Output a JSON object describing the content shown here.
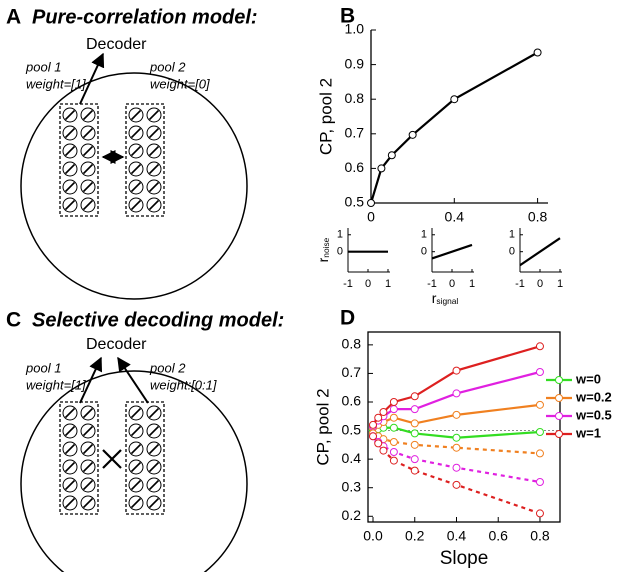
{
  "panel_A": {
    "label": "A",
    "title": "Pure-correlation model:",
    "decoder": "Decoder",
    "pool1": {
      "name": "pool 1",
      "weight": "weight=[1]"
    },
    "pool2": {
      "name": "pool 2",
      "weight": "weight=[0]"
    }
  },
  "panel_C": {
    "label": "C",
    "title": "Selective decoding model:",
    "decoder": "Decoder",
    "pool1": {
      "name": "pool 1",
      "weight": "weight=[1]"
    },
    "pool2": {
      "name": "pool 2",
      "weight": "weight:[0:1]"
    }
  },
  "chart_data": [
    {
      "type": "line",
      "panel_label": "B",
      "ylabel": "CP, pool 2",
      "color": "#000000",
      "x": [
        0,
        0.05,
        0.1,
        0.2,
        0.4,
        0.8
      ],
      "values": [
        0.5,
        0.6,
        0.638,
        0.697,
        0.8,
        0.935
      ],
      "xlim": [
        0,
        0.85
      ],
      "xticks": [
        0,
        0.4,
        0.8
      ],
      "ylim": [
        0.5,
        1.0
      ],
      "yticks": [
        0.5,
        0.6,
        0.7,
        0.8,
        0.9,
        {
          "value": 1.0,
          "label": "1.0"
        }
      ]
    },
    {
      "type": "line",
      "ylabel": "r",
      "ylabel_subscript": "noise",
      "color": "#000000",
      "x": [
        -1,
        1
      ],
      "values": [
        0,
        0
      ],
      "xlim": [
        -1,
        1.1
      ],
      "xticks": [
        -1,
        0,
        1
      ],
      "ylim": [
        -1.2,
        1.4
      ],
      "yticks": [
        0,
        1
      ]
    },
    {
      "type": "line",
      "xlabel": "r",
      "xlabel_subscript": "signal",
      "color": "#000000",
      "x": [
        -1,
        1
      ],
      "values": [
        -0.4,
        0.4
      ],
      "xlim": [
        -1,
        1.1
      ],
      "xticks": [
        -1,
        0,
        1
      ],
      "ylim": [
        -1.2,
        1.4
      ],
      "yticks": [
        0,
        1
      ]
    },
    {
      "type": "line",
      "color": "#000000",
      "x": [
        -1,
        1
      ],
      "values": [
        -0.8,
        0.8
      ],
      "xlim": [
        -1,
        1.1
      ],
      "xticks": [
        -1,
        0,
        1
      ],
      "ylim": [
        -1.2,
        1.4
      ],
      "yticks": [
        0,
        1
      ]
    },
    {
      "type": "line",
      "panel_label": "D",
      "ylabel": "CP, pool 2",
      "xlabel": "Slope",
      "legend": "right",
      "reference_line": 0.5,
      "x": [
        0,
        0.025,
        0.05,
        0.1,
        0.2,
        0.4,
        0.8
      ],
      "xlim": [
        -0.024,
        0.896
      ],
      "xticks": [
        {
          "value": 0,
          "label": "0.0"
        },
        0.2,
        0.4,
        0.6,
        0.8
      ],
      "ylim": [
        0.18,
        0.845
      ],
      "yticks": [
        0.2,
        0.3,
        0.4,
        0.5,
        0.6,
        0.7,
        0.8
      ],
      "series": [
        {
          "name": "w=0",
          "color": "#33dd22",
          "linestyle": "solid",
          "values": [
            0.5,
            0.505,
            0.51,
            0.51,
            0.49,
            0.475,
            0.495
          ]
        },
        {
          "name": "w=0.2",
          "color": "#f08020",
          "linestyle": "solid",
          "values": [
            0.51,
            0.52,
            0.53,
            0.545,
            0.525,
            0.555,
            0.59
          ]
        },
        {
          "name": "w=0.5",
          "color": "#e020e0",
          "linestyle": "solid",
          "values": [
            0.515,
            0.535,
            0.55,
            0.575,
            0.575,
            0.63,
            0.705
          ]
        },
        {
          "name": "w=1",
          "color": "#dd2020",
          "linestyle": "solid",
          "values": [
            0.52,
            0.545,
            0.565,
            0.6,
            0.62,
            0.71,
            0.795
          ]
        },
        {
          "color": "#f08020",
          "linestyle": "dotted",
          "values": [
            0.49,
            0.48,
            0.47,
            0.46,
            0.45,
            0.44,
            0.42
          ]
        },
        {
          "color": "#e020e0",
          "linestyle": "dotted",
          "values": [
            0.48,
            0.46,
            0.445,
            0.425,
            0.4,
            0.37,
            0.32
          ]
        },
        {
          "color": "#dd2020",
          "linestyle": "dotted",
          "values": [
            0.48,
            0.455,
            0.43,
            0.395,
            0.36,
            0.31,
            0.21
          ]
        }
      ]
    }
  ]
}
